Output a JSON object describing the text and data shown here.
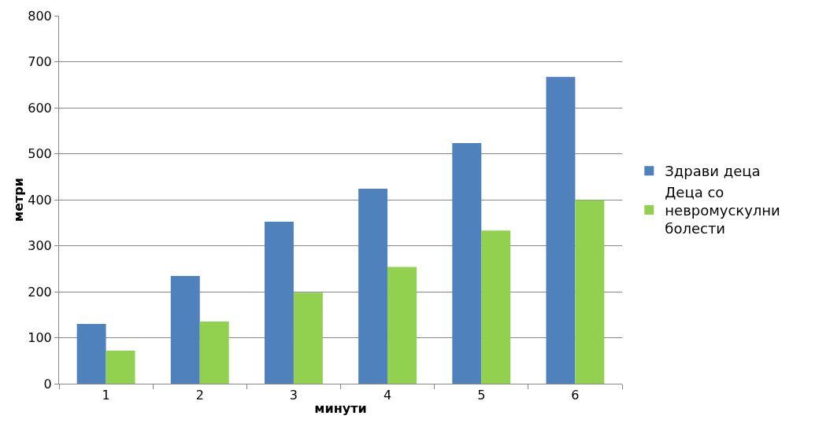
{
  "chart_data": {
    "type": "bar",
    "xlabel": "минути",
    "ylabel": "метри",
    "categories": [
      "1",
      "2",
      "3",
      "4",
      "5",
      "6"
    ],
    "series": [
      {
        "name": "Здрави деца",
        "color": "#4f81bd",
        "values": [
          130,
          234,
          352,
          424,
          523,
          667
        ]
      },
      {
        "name": "Деца со невромускулни болести",
        "color": "#92d050",
        "values": [
          72,
          135,
          198,
          254,
          333,
          399
        ]
      }
    ],
    "ylim": [
      0,
      800
    ],
    "yticks": [
      0,
      100,
      200,
      300,
      400,
      500,
      600,
      700,
      800
    ],
    "grid": "y",
    "legend": "right"
  }
}
